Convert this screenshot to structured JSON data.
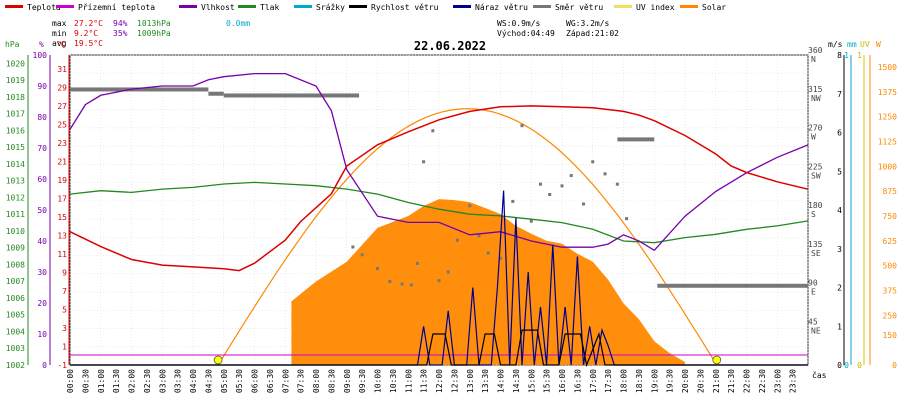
{
  "chart_data": {
    "type": "line",
    "date": "22.06.2022",
    "legend": [
      {
        "label": "Teplota",
        "color": "#dd0000"
      },
      {
        "label": "Přízemní teplota",
        "color": "#cc00cc"
      },
      {
        "label": "Vlhkost",
        "color": "#7700aa"
      },
      {
        "label": "Tlak",
        "color": "#228822"
      },
      {
        "label": "Srážky",
        "color": "#00aacc"
      },
      {
        "label": "Rychlost větru",
        "color": "#000000"
      },
      {
        "label": "Náraz větru",
        "color": "#00008b"
      },
      {
        "label": "Směr větru",
        "color": "#777777"
      },
      {
        "label": "UV index",
        "color": "#f0e060"
      },
      {
        "label": "Solar",
        "color": "#ff8800"
      }
    ],
    "stats": {
      "max_label": "max",
      "max_temp": "27.2°C",
      "max_hum": "94%",
      "max_press": "1013hPa",
      "rain": "0.0mm",
      "min_label": "min",
      "min_temp": "9.2°C",
      "min_hum": "35%",
      "min_press": "1009hPa",
      "avg_label": "avg",
      "avg_temp": "19.5°C"
    },
    "wind_info": {
      "ws": "WS:0.9m/s",
      "wg": "WG:3.2m/s",
      "sunrise": "Východ:04:49",
      "sunset": "Západ:21:02"
    },
    "axes": {
      "hpa_unit": "hPa",
      "pct_unit": "%",
      "degc_unit": "°C",
      "hpa_ticks": [
        "1002",
        "1003",
        "1004",
        "1005",
        "1006",
        "1007",
        "1008",
        "1009",
        "1010",
        "1011",
        "1012",
        "1013",
        "1014",
        "1015",
        "1016",
        "1017",
        "1018",
        "1019",
        "1020"
      ],
      "pct_ticks": [
        "0",
        "10",
        "20",
        "30",
        "40",
        "50",
        "60",
        "70",
        "80",
        "90",
        "100"
      ],
      "degc_ticks": [
        "-1",
        "1",
        "3",
        "5",
        "7",
        "9",
        "11",
        "13",
        "15",
        "17",
        "19",
        "21",
        "23",
        "25",
        "27",
        "29",
        "31"
      ],
      "dir_ticks": [
        "NE",
        "E",
        "SE",
        "S",
        "SW",
        "W",
        "NW",
        "N"
      ],
      "dir_deg_ticks": [
        "45",
        "90",
        "135",
        "180",
        "225",
        "270",
        "315",
        "360"
      ],
      "ms_unit": "m/s",
      "ms_ticks": [
        "0",
        "1",
        "2",
        "3",
        "4",
        "5",
        "6",
        "7",
        "8"
      ],
      "mm_unit": "mm",
      "mm_ticks": [
        "0",
        "1"
      ],
      "uv_unit": "UV",
      "uv_ticks": [
        "0",
        "1"
      ],
      "w_unit": "W",
      "w_ticks": [
        "0",
        "150",
        "250",
        "375",
        "500",
        "625",
        "750",
        "875",
        "1000",
        "1125",
        "1250",
        "1375",
        "1500"
      ],
      "time_label": "čas",
      "time_ticks": [
        "00:00",
        "00:30",
        "01:00",
        "01:30",
        "02:00",
        "02:30",
        "03:00",
        "03:30",
        "04:00",
        "04:30",
        "05:00",
        "05:30",
        "06:00",
        "06:30",
        "07:00",
        "07:30",
        "08:00",
        "08:30",
        "09:00",
        "09:30",
        "10:00",
        "10:30",
        "11:00",
        "11:30",
        "12:00",
        "12:30",
        "13:00",
        "13:30",
        "14:00",
        "14:30",
        "15:00",
        "15:30",
        "16:00",
        "16:30",
        "17:00",
        "17:30",
        "18:00",
        "18:30",
        "19:00",
        "19:30",
        "20:00",
        "20:30",
        "21:00",
        "21:30",
        "22:00",
        "22:30",
        "23:00",
        "23:30"
      ]
    },
    "series": {
      "temperature_c": {
        "x_h": [
          0,
          1,
          2,
          3,
          4,
          5,
          5.5,
          6,
          7,
          7.5,
          8,
          8.5,
          9,
          10,
          11,
          12,
          13,
          14,
          15,
          16,
          17,
          18,
          18.5,
          19,
          20,
          21,
          21.5,
          22,
          23,
          24
        ],
        "y": [
          13.4,
          11.8,
          10.4,
          9.8,
          9.6,
          9.4,
          9.2,
          10.0,
          12.5,
          14.5,
          16.0,
          17.5,
          20.5,
          22.8,
          24.2,
          25.5,
          26.4,
          26.9,
          27.0,
          26.9,
          26.8,
          26.4,
          26.0,
          25.4,
          23.8,
          21.8,
          20.5,
          19.8,
          18.8,
          18.0
        ]
      },
      "humidity_pct": {
        "x_h": [
          0,
          0.5,
          1,
          1.5,
          2,
          3,
          4,
          4.5,
          5,
          6,
          7,
          8,
          8.5,
          9,
          10,
          11,
          12,
          13,
          14,
          15,
          16,
          17,
          17.5,
          18,
          18.5,
          19,
          20,
          21,
          22,
          23,
          24
        ],
        "y": [
          76,
          84,
          87,
          88,
          89,
          90,
          90,
          92,
          93,
          94,
          94,
          90,
          82,
          63,
          48,
          46,
          46,
          42,
          43,
          40,
          38,
          38,
          39,
          42,
          40,
          37,
          48,
          56,
          62,
          67,
          71
        ]
      },
      "pressure_hpa": {
        "x_h": [
          0,
          1,
          2,
          3,
          4,
          5,
          6,
          7,
          8,
          9,
          10,
          11,
          12,
          13,
          14,
          15,
          16,
          17,
          18,
          19,
          20,
          21,
          22,
          23,
          24
        ],
        "y": [
          1012.2,
          1012.4,
          1012.3,
          1012.5,
          1012.6,
          1012.8,
          1012.9,
          1012.8,
          1012.7,
          1012.5,
          1012.2,
          1011.7,
          1011.3,
          1011.0,
          1010.9,
          1010.7,
          1010.5,
          1010.1,
          1009.4,
          1009.3,
          1009.6,
          1009.8,
          1010.1,
          1010.3,
          1010.6
        ]
      },
      "solar_w": {
        "x_h": [
          7.2,
          8,
          9,
          10,
          11,
          11.5,
          12,
          12.5,
          13,
          13.5,
          14,
          14.5,
          15,
          15.5,
          16,
          16.5,
          17,
          17.5,
          18,
          18.5,
          19,
          19.5,
          20
        ],
        "y": [
          320,
          420,
          520,
          690,
          750,
          800,
          835,
          830,
          820,
          790,
          760,
          700,
          660,
          625,
          610,
          560,
          520,
          430,
          310,
          230,
          120,
          60,
          15
        ]
      },
      "solar_clear_sky_w": {
        "sunrise_h": 4.8167,
        "sunset_h": 21.0333,
        "peak_w": 1290
      },
      "wind_speed_ms": {
        "x_h": [
          0,
          11.6,
          11.8,
          12.2,
          12.4,
          13.3,
          13.5,
          13.8,
          14.0,
          14.5,
          14.7,
          15.2,
          15.4,
          15.9,
          16.1,
          16.6,
          16.8,
          17.2,
          17.4,
          24
        ],
        "y": [
          0,
          0,
          0.8,
          0.8,
          0,
          0,
          0.8,
          0.8,
          0,
          0,
          0.9,
          0.9,
          0,
          0,
          0.8,
          0.8,
          0,
          0.8,
          0,
          0
        ]
      },
      "wind_gust_ms": {
        "x_h": [
          0,
          11.3,
          11.5,
          11.7,
          12.1,
          12.3,
          12.5,
          12.9,
          13.1,
          13.3,
          13.7,
          13.9,
          14.1,
          14.3,
          14.5,
          14.7,
          14.9,
          15.1,
          15.3,
          15.5,
          15.7,
          15.9,
          16.1,
          16.3,
          16.5,
          16.7,
          16.9,
          17.1,
          17.3,
          17.5,
          17.7,
          24
        ],
        "y": [
          0,
          0,
          1.0,
          0,
          0,
          1.4,
          0,
          0,
          2.0,
          0,
          0,
          2.0,
          4.5,
          0,
          3.8,
          0,
          2.4,
          0,
          1.5,
          0,
          3.1,
          0,
          1.5,
          0,
          2.8,
          0,
          1.0,
          0,
          0.9,
          0.5,
          0,
          0
        ]
      },
      "wind_dir_deg": {
        "x_h": [
          9.2,
          9.5,
          10.0,
          10.4,
          10.8,
          11.1,
          11.3,
          11.5,
          11.8,
          12.0,
          12.3,
          12.6,
          13.0,
          13.3,
          13.6,
          14.0,
          14.4,
          14.7,
          15.0,
          15.3,
          15.6,
          16.0,
          16.3,
          16.7,
          17.0,
          17.4,
          17.8,
          18.1
        ],
        "y": [
          137,
          128,
          112,
          97,
          94,
          93,
          118,
          236,
          272,
          98,
          108,
          145,
          185,
          150,
          130,
          124,
          190,
          278,
          167,
          210,
          198,
          208,
          220,
          187,
          236,
          222,
          210,
          170
        ]
      },
      "wind_dir_segments": [
        {
          "x0_h": 0.0,
          "x1_h": 4.5,
          "deg": 320
        },
        {
          "x0_h": 4.5,
          "x1_h": 5.0,
          "deg": 315
        },
        {
          "x0_h": 5.0,
          "x1_h": 9.4,
          "deg": 313
        },
        {
          "x0_h": 17.8,
          "x1_h": 19.0,
          "deg": 262
        },
        {
          "x0_h": 19.1,
          "x1_h": 24.0,
          "deg": 92
        }
      ]
    }
  }
}
